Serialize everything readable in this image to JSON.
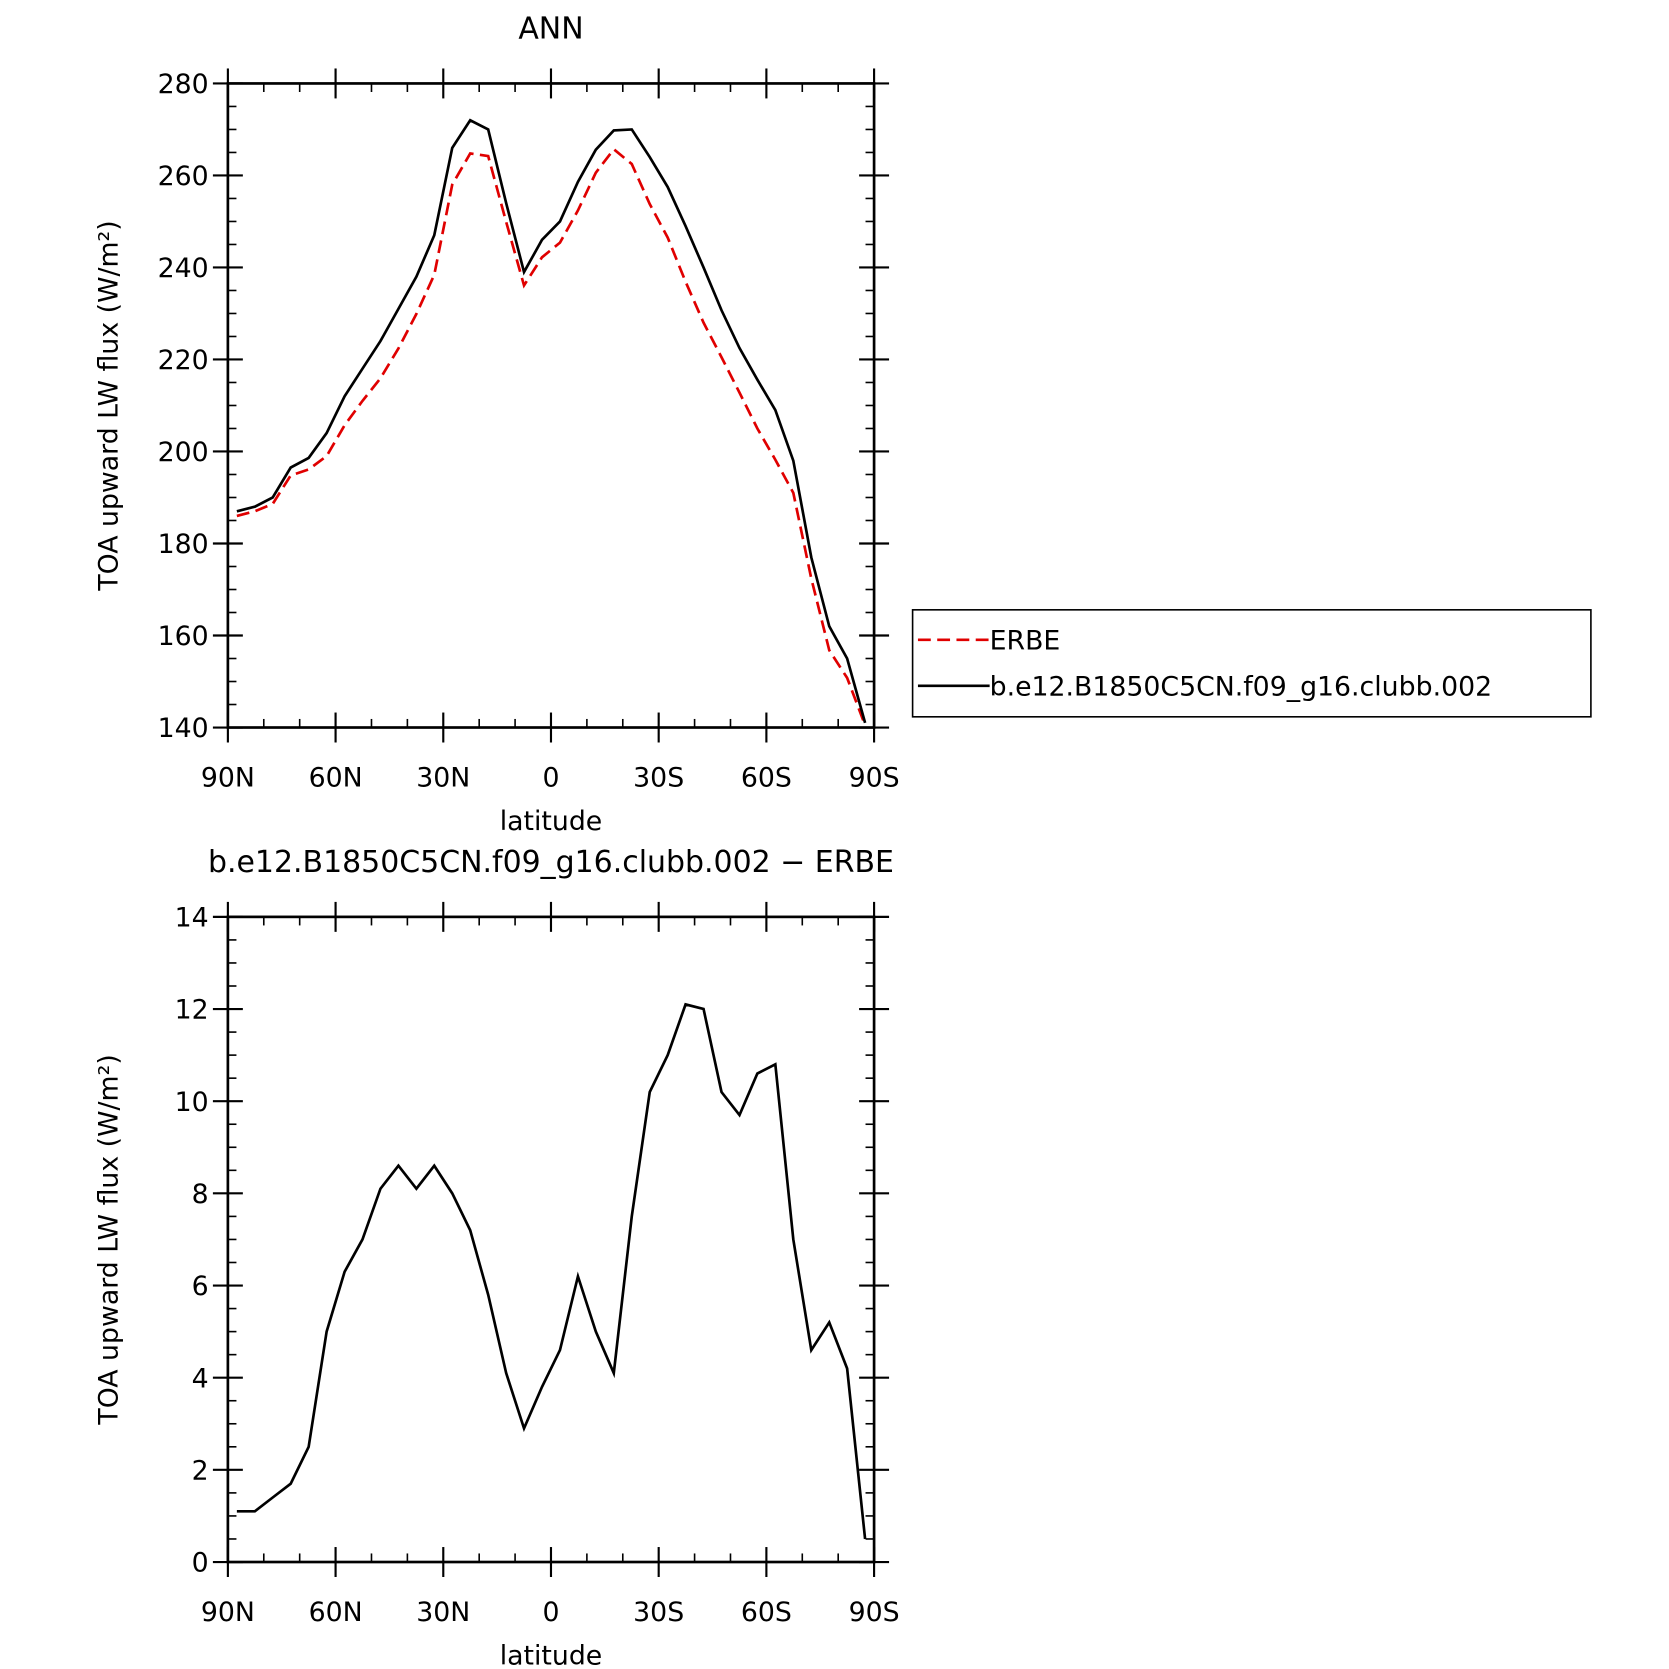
{
  "chart_data": [
    {
      "type": "line",
      "title": "ANN",
      "xlabel": "latitude",
      "ylabel": "TOA upward LW flux (W/m²)",
      "x": [
        87.5,
        82.5,
        77.5,
        72.5,
        67.5,
        62.5,
        57.5,
        52.5,
        47.5,
        42.5,
        37.5,
        32.5,
        27.5,
        22.5,
        17.5,
        12.5,
        7.5,
        2.5,
        -2.5,
        -7.5,
        -12.5,
        -17.5,
        -22.5,
        -27.5,
        -32.5,
        -37.5,
        -42.5,
        -47.5,
        -52.5,
        -57.5,
        -62.5,
        -67.5,
        -72.5,
        -77.5,
        -82.5,
        -87.5
      ],
      "xlim": [
        90,
        -90
      ],
      "xticks": [
        {
          "value": 90,
          "label": "90N"
        },
        {
          "value": 60,
          "label": "60N"
        },
        {
          "value": 30,
          "label": "30N"
        },
        0,
        {
          "value": -30,
          "label": "30S"
        },
        {
          "value": -60,
          "label": "60S"
        },
        {
          "value": -90,
          "label": "90S"
        }
      ],
      "ylim": [
        140,
        280
      ],
      "yticks": [
        140,
        160,
        180,
        200,
        220,
        240,
        260,
        280
      ],
      "legend": "right",
      "series": [
        {
          "name": "ERBE",
          "color": "#e00000",
          "dashed": true,
          "values": [
            186,
            187,
            188.6,
            194.8,
            196.1,
            199,
            205.7,
            211,
            215.9,
            222.4,
            229.9,
            238.4,
            258,
            264.8,
            264.2,
            249.9,
            236.1,
            242.2,
            245.4,
            252.4,
            260.6,
            265.7,
            262.5,
            253.8,
            246.5,
            236.9,
            228,
            220.5,
            212.8,
            205,
            198.2,
            191,
            172.4,
            156.8,
            150.8,
            140.5
          ]
        },
        {
          "name": "b.e12.B1850C5CN.f09_g16.clubb.002",
          "color": "#000000",
          "dashed": false,
          "values": [
            187,
            188,
            190,
            196.5,
            198.6,
            204,
            212,
            218,
            224,
            231,
            238,
            247,
            266,
            272,
            270,
            254,
            239,
            246,
            250,
            258.6,
            265.6,
            269.8,
            270,
            264,
            257.5,
            249,
            240,
            230.7,
            222.5,
            215.6,
            209,
            198,
            177,
            162,
            155,
            141
          ]
        }
      ]
    },
    {
      "type": "line",
      "title": "b.e12.B1850C5CN.f09_g16.clubb.002 − ERBE",
      "xlabel": "latitude",
      "ylabel": "TOA upward LW flux (W/m²)",
      "x": [
        87.5,
        82.5,
        77.5,
        72.5,
        67.5,
        62.5,
        57.5,
        52.5,
        47.5,
        42.5,
        37.5,
        32.5,
        27.5,
        22.5,
        17.5,
        12.5,
        7.5,
        2.5,
        -2.5,
        -7.5,
        -12.5,
        -17.5,
        -22.5,
        -27.5,
        -32.5,
        -37.5,
        -42.5,
        -47.5,
        -52.5,
        -57.5,
        -62.5,
        -67.5,
        -72.5,
        -77.5,
        -82.5,
        -87.5
      ],
      "xlim": [
        90,
        -90
      ],
      "xticks": [
        {
          "value": 90,
          "label": "90N"
        },
        {
          "value": 60,
          "label": "60N"
        },
        {
          "value": 30,
          "label": "30N"
        },
        0,
        {
          "value": -30,
          "label": "30S"
        },
        {
          "value": -60,
          "label": "60S"
        },
        {
          "value": -90,
          "label": "90S"
        }
      ],
      "ylim": [
        0,
        14
      ],
      "yticks": [
        0,
        2,
        4,
        6,
        8,
        10,
        12,
        14
      ],
      "color": "#000000",
      "values": [
        1.1,
        1.1,
        1.4,
        1.7,
        2.5,
        5.0,
        6.3,
        7.0,
        8.1,
        8.6,
        8.1,
        8.6,
        8.0,
        7.2,
        5.8,
        4.1,
        2.9,
        3.8,
        4.6,
        6.2,
        5.0,
        4.1,
        7.5,
        10.2,
        11.0,
        12.1,
        12.0,
        10.2,
        9.7,
        10.6,
        10.8,
        7.0,
        4.6,
        5.2,
        4.2,
        0.5
      ]
    }
  ]
}
